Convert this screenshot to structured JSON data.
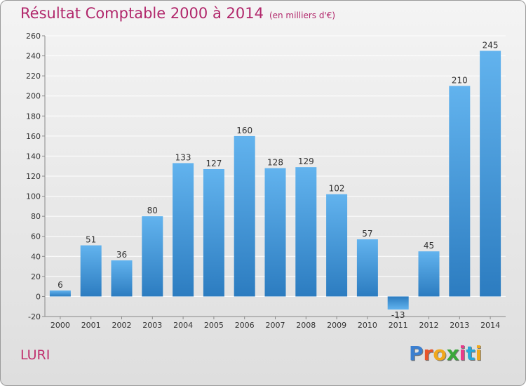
{
  "title": {
    "main": "Résultat Comptable 2000 à 2014",
    "unit": "(en milliers d'€)"
  },
  "place_label": "LURI",
  "logo": {
    "text": "Proxiti",
    "letter_colors": [
      "#3b7fd0",
      "#e8542a",
      "#f0a81c",
      "#3aa83a",
      "#e83a8a",
      "#27a7d8",
      "#f0a81c"
    ]
  },
  "colors": {
    "bar_light": "#62b3ee",
    "bar_dark": "#2c7cc0",
    "title": "#b1276b",
    "gridline": "#ffffff"
  },
  "chart_data": {
    "type": "bar",
    "title": "Résultat Comptable 2000 à 2014",
    "subtitle": "(en milliers d'€)",
    "xlabel": "",
    "ylabel": "",
    "categories": [
      "2000",
      "2001",
      "2002",
      "2003",
      "2004",
      "2005",
      "2006",
      "2007",
      "2008",
      "2009",
      "2010",
      "2011",
      "2012",
      "2013",
      "2014"
    ],
    "values": [
      6,
      51,
      36,
      80,
      133,
      127,
      160,
      128,
      129,
      102,
      57,
      -13,
      45,
      210,
      245
    ],
    "data_labels": [
      "6",
      "51",
      "36",
      "80",
      "133",
      "127",
      "160",
      "128",
      "129",
      "102",
      "57",
      "-13",
      "45",
      "210",
      "245"
    ],
    "ylim": [
      -20,
      260
    ],
    "yticks": [
      -20,
      0,
      20,
      40,
      60,
      80,
      100,
      120,
      140,
      160,
      180,
      200,
      220,
      240,
      260
    ],
    "grid": true,
    "legend": "none"
  }
}
